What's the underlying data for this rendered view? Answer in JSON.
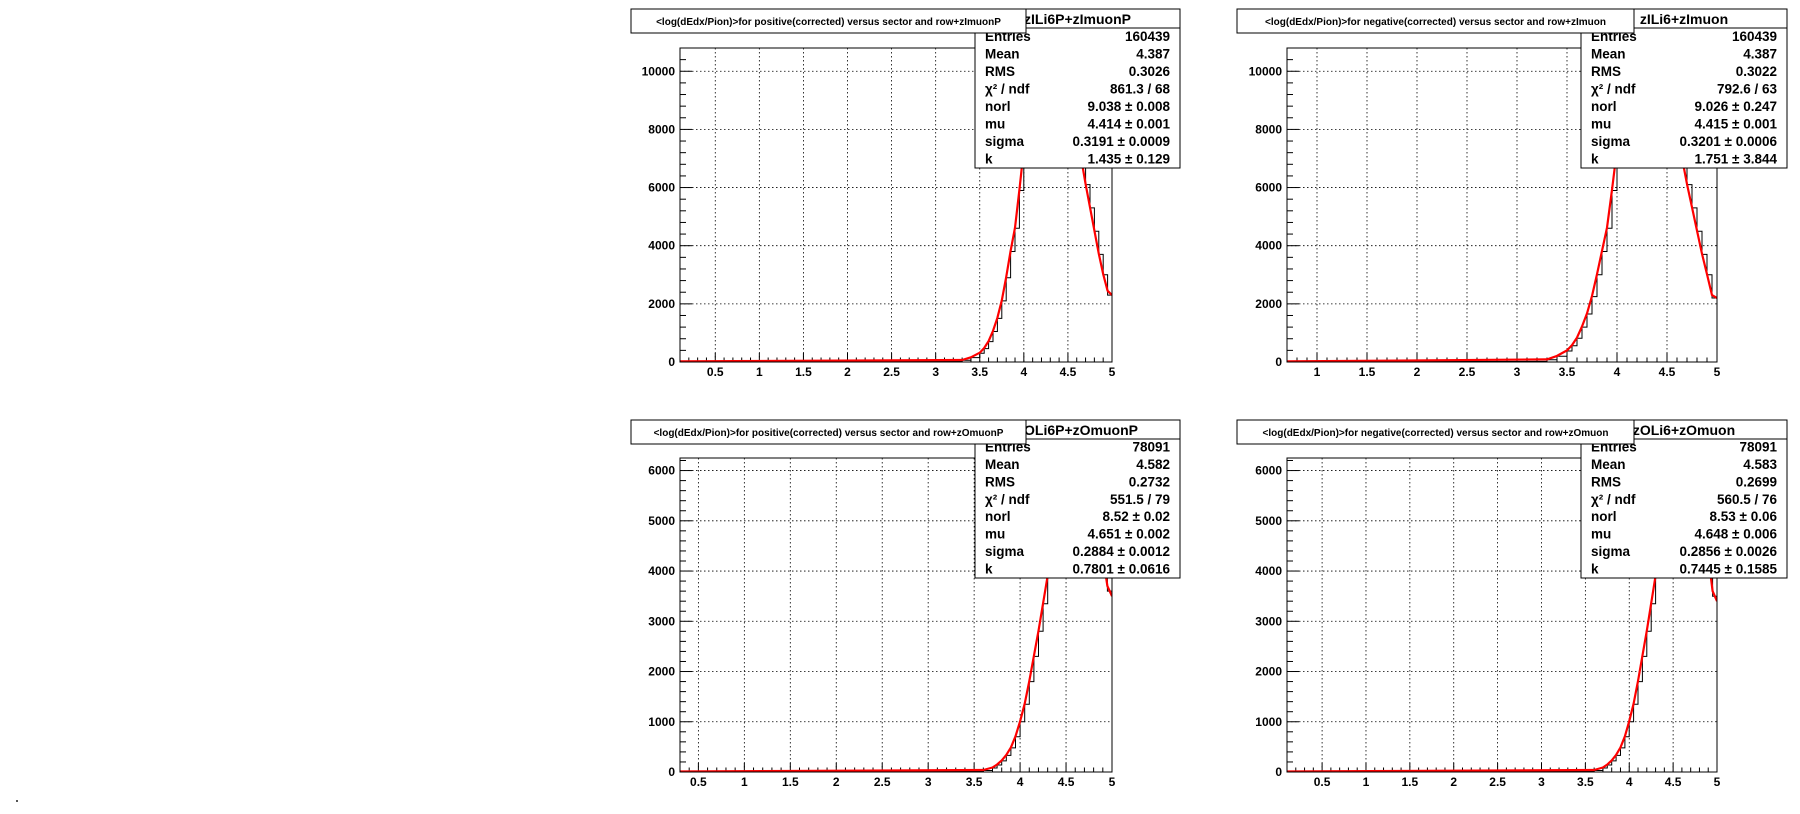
{
  "colors": {
    "frame": "#000000",
    "grid": "#000000",
    "histogram": "#000000",
    "fit": "#ff0000",
    "background": "#ffffff"
  },
  "chart_data": [
    {
      "type": "line",
      "title": "<log(dEdx/Pion)>for positive(corrected) versus sector and row+zImuonP",
      "xlabel": "",
      "ylabel": "",
      "xlim": [
        0.1,
        5.0
      ],
      "ylim": [
        0,
        10800
      ],
      "xticks": [
        0.5,
        1,
        1.5,
        2,
        2.5,
        3,
        3.5,
        4,
        4.5,
        5
      ],
      "xtick_labels": [
        "0.5",
        "1",
        "1.5",
        "2",
        "2.5",
        "3",
        "3.5",
        "4",
        "4.5",
        "5"
      ],
      "yticks": [
        0,
        2000,
        4000,
        6000,
        8000,
        10000
      ],
      "ytick_labels": [
        "0",
        "2000",
        "4000",
        "6000",
        "8000",
        "10000"
      ],
      "grid": true,
      "stats": {
        "name": "zILi6P+zImuonP",
        "rows": [
          {
            "label": "Entries",
            "value": "160439"
          },
          {
            "label": "Mean",
            "value": "4.387"
          },
          {
            "label": "RMS",
            "value": "0.3026"
          },
          {
            "label": "χ² / ndf",
            "value": "861.3 / 68"
          },
          {
            "label": "norl",
            "value": "9.038 ± 0.008"
          },
          {
            "label": "mu",
            "value": "4.414 ± 0.001"
          },
          {
            "label": "sigma",
            "value": "0.3191 ± 0.0009"
          },
          {
            "label": "k",
            "value": "1.435 ± 0.129"
          }
        ]
      },
      "series": [
        {
          "name": "histogram",
          "x": [
            0.1,
            3.3,
            3.4,
            3.5,
            3.55,
            3.6,
            3.65,
            3.7,
            3.75,
            3.8,
            3.85,
            3.9,
            3.95,
            4.0,
            4.05,
            4.1,
            4.15,
            4.2,
            4.25,
            4.3,
            4.35,
            4.4,
            4.45,
            4.5,
            4.55,
            4.6,
            4.65,
            4.7,
            4.75,
            4.8,
            4.85,
            4.9,
            4.95,
            5.0
          ],
          "y": [
            20,
            60,
            150,
            300,
            460,
            700,
            1050,
            1500,
            2100,
            2900,
            3800,
            4600,
            5900,
            7300,
            8700,
            9800,
            10700,
            11300,
            11600,
            11700,
            11500,
            11000,
            10400,
            9600,
            8800,
            7900,
            7000,
            6100,
            5300,
            4500,
            3700,
            3000,
            2300,
            2300
          ]
        },
        {
          "name": "fit",
          "x": [
            0.1,
            3.3,
            3.4,
            3.5,
            3.55,
            3.6,
            3.65,
            3.7,
            3.75,
            3.8,
            3.85,
            3.9,
            3.95,
            4.0,
            4.05,
            4.1,
            4.15,
            4.2,
            4.25,
            4.3,
            4.35,
            4.4,
            4.45,
            4.5,
            4.55,
            4.6,
            4.65,
            4.7,
            4.75,
            4.8,
            4.85,
            4.9,
            4.95,
            5.0
          ],
          "y": [
            20,
            70,
            160,
            320,
            480,
            720,
            1070,
            1520,
            2120,
            2920,
            3820,
            4620,
            5920,
            7320,
            8720,
            9820,
            10720,
            11320,
            11620,
            11720,
            11520,
            11020,
            10420,
            9620,
            8820,
            7920,
            7020,
            6120,
            5320,
            4520,
            3720,
            3020,
            2450,
            2300
          ]
        }
      ]
    },
    {
      "type": "line",
      "title": "<log(dEdx/Pion)>for negative(corrected) versus sector and row+zImuon",
      "xlabel": "",
      "ylabel": "",
      "xlim": [
        0.7,
        5.0
      ],
      "ylim": [
        0,
        10800
      ],
      "xticks": [
        1,
        1.5,
        2,
        2.5,
        3,
        3.5,
        4,
        4.5,
        5
      ],
      "xtick_labels": [
        "1",
        "1.5",
        "2",
        "2.5",
        "3",
        "3.5",
        "4",
        "4.5",
        "5"
      ],
      "yticks": [
        0,
        2000,
        4000,
        6000,
        8000,
        10000
      ],
      "ytick_labels": [
        "0",
        "2000",
        "4000",
        "6000",
        "8000",
        "10000"
      ],
      "grid": true,
      "stats": {
        "name": "zILi6+zImuon",
        "rows": [
          {
            "label": "Entries",
            "value": "160439"
          },
          {
            "label": "Mean",
            "value": "4.387"
          },
          {
            "label": "RMS",
            "value": "0.3022"
          },
          {
            "label": "χ² / ndf",
            "value": "792.6 / 63"
          },
          {
            "label": "norl",
            "value": "9.026 ± 0.247"
          },
          {
            "label": "mu",
            "value": "4.415 ± 0.001"
          },
          {
            "label": "sigma",
            "value": "0.3201 ± 0.0006"
          },
          {
            "label": "k",
            "value": "1.751 ± 3.844"
          }
        ]
      },
      "series": [
        {
          "name": "histogram",
          "x": [
            0.7,
            3.3,
            3.4,
            3.5,
            3.55,
            3.6,
            3.65,
            3.7,
            3.75,
            3.8,
            3.85,
            3.9,
            3.95,
            4.0,
            4.05,
            4.1,
            4.15,
            4.2,
            4.25,
            4.3,
            4.35,
            4.4,
            4.45,
            4.5,
            4.55,
            4.6,
            4.65,
            4.7,
            4.75,
            4.8,
            4.85,
            4.9,
            4.95,
            5.0
          ],
          "y": [
            20,
            80,
            200,
            380,
            560,
            820,
            1200,
            1650,
            2250,
            3000,
            3800,
            4600,
            5900,
            7300,
            8700,
            9800,
            10700,
            11300,
            11600,
            11700,
            11500,
            11000,
            10400,
            9600,
            8800,
            7900,
            7000,
            6100,
            5300,
            4500,
            3700,
            3000,
            2200,
            2100
          ]
        },
        {
          "name": "fit",
          "x": [
            0.7,
            3.3,
            3.4,
            3.5,
            3.55,
            3.6,
            3.65,
            3.7,
            3.75,
            3.8,
            3.85,
            3.9,
            3.95,
            4.0,
            4.05,
            4.1,
            4.15,
            4.2,
            4.25,
            4.3,
            4.35,
            4.4,
            4.45,
            4.5,
            4.55,
            4.6,
            4.65,
            4.7,
            4.75,
            4.8,
            4.85,
            4.9,
            4.95,
            5.0
          ],
          "y": [
            20,
            90,
            210,
            400,
            580,
            840,
            1220,
            1670,
            2270,
            3020,
            3820,
            4620,
            5920,
            7320,
            8720,
            9820,
            10720,
            11320,
            11620,
            11720,
            11520,
            11020,
            10420,
            9620,
            8820,
            7920,
            7020,
            6120,
            5320,
            4520,
            3720,
            3020,
            2300,
            2200
          ]
        }
      ]
    },
    {
      "type": "line",
      "title": "<log(dEdx/Pion)>for positive(corrected) versus sector and row+zOmuonP",
      "xlabel": "",
      "ylabel": "",
      "xlim": [
        0.3,
        5.0
      ],
      "ylim": [
        0,
        6250
      ],
      "xticks": [
        0.5,
        1,
        1.5,
        2,
        2.5,
        3,
        3.5,
        4,
        4.5,
        5
      ],
      "xtick_labels": [
        "0.5",
        "1",
        "1.5",
        "2",
        "2.5",
        "3",
        "3.5",
        "4",
        "4.5",
        "5"
      ],
      "yticks": [
        0,
        1000,
        2000,
        3000,
        4000,
        5000,
        6000
      ],
      "ytick_labels": [
        "0",
        "1000",
        "2000",
        "3000",
        "4000",
        "5000",
        "6000"
      ],
      "grid": true,
      "stats": {
        "name": "zOLi6P+zOmuonP",
        "rows": [
          {
            "label": "Entries",
            "value": "78091"
          },
          {
            "label": "Mean",
            "value": "4.582"
          },
          {
            "label": "RMS",
            "value": "0.2732"
          },
          {
            "label": "χ² / ndf",
            "value": "551.5 / 79"
          },
          {
            "label": "norl",
            "value": "8.52 ± 0.02"
          },
          {
            "label": "mu",
            "value": "4.651 ± 0.002"
          },
          {
            "label": "sigma",
            "value": "0.2884 ± 0.0012"
          },
          {
            "label": "k",
            "value": "0.7801 ± 0.0616"
          }
        ]
      },
      "series": [
        {
          "name": "histogram",
          "x": [
            0.3,
            3.6,
            3.7,
            3.75,
            3.8,
            3.85,
            3.9,
            3.95,
            4.0,
            4.05,
            4.1,
            4.15,
            4.2,
            4.25,
            4.3,
            4.35,
            4.4,
            4.45,
            4.5,
            4.55,
            4.6,
            4.65,
            4.7,
            4.75,
            4.8,
            4.85,
            4.9,
            4.95,
            5.0
          ],
          "y": [
            10,
            30,
            80,
            140,
            220,
            330,
            480,
            700,
            1000,
            1350,
            1800,
            2300,
            2800,
            3350,
            3900,
            4400,
            4900,
            5400,
            5800,
            6100,
            6300,
            6300,
            6100,
            5800,
            5300,
            4900,
            4300,
            3600,
            3400
          ]
        },
        {
          "name": "fit",
          "x": [
            0.3,
            3.6,
            3.7,
            3.75,
            3.8,
            3.85,
            3.9,
            3.95,
            4.0,
            4.05,
            4.1,
            4.15,
            4.2,
            4.25,
            4.3,
            4.35,
            4.4,
            4.45,
            4.5,
            4.55,
            4.6,
            4.65,
            4.7,
            4.75,
            4.8,
            4.85,
            4.9,
            4.95,
            5.0
          ],
          "y": [
            10,
            40,
            90,
            150,
            230,
            340,
            490,
            710,
            1010,
            1360,
            1810,
            2310,
            2810,
            3360,
            3910,
            4410,
            4910,
            5410,
            5810,
            6110,
            6310,
            6310,
            6110,
            5810,
            5310,
            4910,
            4310,
            3700,
            3500
          ]
        }
      ]
    },
    {
      "type": "line",
      "title": "<log(dEdx/Pion)>for negative(corrected) versus sector and row+zOmuon",
      "xlabel": "",
      "ylabel": "",
      "xlim": [
        0.1,
        5.0
      ],
      "ylim": [
        0,
        6250
      ],
      "xticks": [
        0.5,
        1,
        1.5,
        2,
        2.5,
        3,
        3.5,
        4,
        4.5,
        5
      ],
      "xtick_labels": [
        "0.5",
        "1",
        "1.5",
        "2",
        "2.5",
        "3",
        "3.5",
        "4",
        "4.5",
        "5"
      ],
      "yticks": [
        0,
        1000,
        2000,
        3000,
        4000,
        5000,
        6000
      ],
      "ytick_labels": [
        "0",
        "1000",
        "2000",
        "3000",
        "4000",
        "5000",
        "6000"
      ],
      "grid": true,
      "stats": {
        "name": "zOLi6+zOmuon",
        "rows": [
          {
            "label": "Entries",
            "value": "78091"
          },
          {
            "label": "Mean",
            "value": "4.583"
          },
          {
            "label": "RMS",
            "value": "0.2699"
          },
          {
            "label": "χ² / ndf",
            "value": "560.5 / 76"
          },
          {
            "label": "norl",
            "value": "8.53 ± 0.06"
          },
          {
            "label": "mu",
            "value": "4.648 ± 0.006"
          },
          {
            "label": "sigma",
            "value": "0.2856 ± 0.0026"
          },
          {
            "label": "k",
            "value": "0.7445 ± 0.1585"
          }
        ]
      },
      "series": [
        {
          "name": "histogram",
          "x": [
            0.1,
            3.6,
            3.7,
            3.75,
            3.8,
            3.85,
            3.9,
            3.95,
            4.0,
            4.05,
            4.1,
            4.15,
            4.2,
            4.25,
            4.3,
            4.35,
            4.4,
            4.45,
            4.5,
            4.55,
            4.6,
            4.65,
            4.7,
            4.75,
            4.8,
            4.85,
            4.9,
            4.95,
            5.0
          ],
          "y": [
            10,
            30,
            80,
            140,
            220,
            330,
            480,
            700,
            1000,
            1350,
            1800,
            2300,
            2800,
            3350,
            3900,
            4400,
            4900,
            5400,
            5800,
            6100,
            6300,
            6300,
            6100,
            5800,
            5300,
            4900,
            4300,
            3500,
            3300
          ]
        },
        {
          "name": "fit",
          "x": [
            0.1,
            3.6,
            3.7,
            3.75,
            3.8,
            3.85,
            3.9,
            3.95,
            4.0,
            4.05,
            4.1,
            4.15,
            4.2,
            4.25,
            4.3,
            4.35,
            4.4,
            4.45,
            4.5,
            4.55,
            4.6,
            4.65,
            4.7,
            4.75,
            4.8,
            4.85,
            4.9,
            4.95,
            5.0
          ],
          "y": [
            10,
            40,
            90,
            150,
            230,
            340,
            490,
            710,
            1010,
            1360,
            1810,
            2310,
            2810,
            3360,
            3910,
            4410,
            4910,
            5410,
            5810,
            6110,
            6310,
            6310,
            6110,
            5810,
            5310,
            4910,
            4310,
            3600,
            3400
          ]
        }
      ]
    }
  ]
}
